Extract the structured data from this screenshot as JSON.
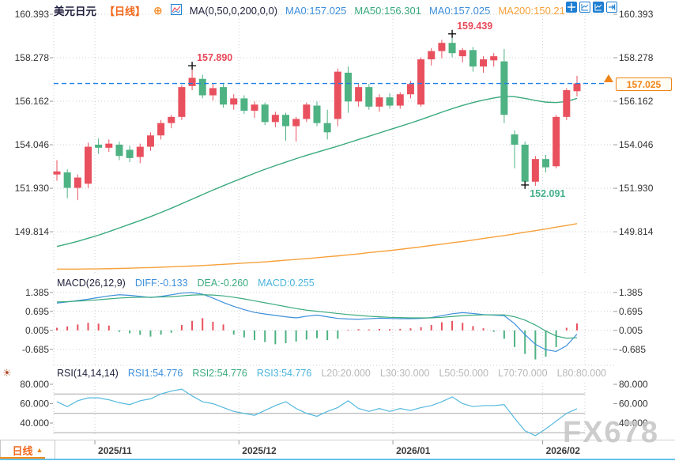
{
  "colors": {
    "bull": "#e9505e",
    "bear": "#4eb283",
    "ma50": "#3aaa7e",
    "ma200": "#f6a13a",
    "blue": "#3d8fdb",
    "cyan": "#4ab4dc",
    "teal": "#3aaa7e",
    "gray": "#b8b8b8",
    "orange": "#f2691d",
    "price": "#f08418",
    "grid": "#cfcfcf",
    "axis": "#333333",
    "dashed": "#1f7fe8",
    "rsi_line": "#54b9dd",
    "dark": "#23233f",
    "icon": "#1e7fd2",
    "timeline": "#3a3a3a",
    "ann_high": "#e8495a",
    "ann_low": "#45b08c",
    "level": "#a8a8a8"
  },
  "header": {
    "symbol": "美元日元",
    "period": "【日线】",
    "ma_settings": "MA(0,50,0,200,0,0)",
    "ma_values": [
      {
        "text": "MA0:157.025"
      },
      {
        "text": "MA50:156.301"
      },
      {
        "text": "MA0:157.025"
      },
      {
        "text": "MA200:150.21"
      }
    ]
  },
  "toolbar": {
    "icons": [
      "crosshair-icon",
      "chart-axes-icon",
      "chart-panel-icon",
      "page-forward-icon"
    ]
  },
  "current_price": {
    "value": "157.025"
  },
  "macd": {
    "label": "MACD(26,12,9)",
    "diff": "DIFF:-0.133",
    "dea": "DEA:-0.260",
    "macd": "MACD:0.255"
  },
  "rsi": {
    "label": "RSI(14,14,14)",
    "rsi1": "RSI1:54.776",
    "rsi2": "RSI2:54.776",
    "rsi3": "RSI3:54.776",
    "levels": [
      "L20:20.000",
      "L30:30.000",
      "L50:50.000",
      "L70:70.000",
      "L80:80.000"
    ]
  },
  "timeline": {
    "tab": "日线",
    "arrow": "▲"
  },
  "watermark": "FX678",
  "chart_data": [
    {
      "type": "candlestick",
      "title": "USD/JPY daily candlestick with MA50/MA200",
      "y_ticks": [
        {
          "t": "160.393",
          "v": 160.393
        },
        {
          "t": "158.278",
          "v": 158.278
        },
        {
          "t": "156.162",
          "v": 156.162
        },
        {
          "t": "154.046",
          "v": 154.046
        },
        {
          "t": "151.930",
          "v": 151.93
        },
        {
          "t": "149.814",
          "v": 149.814
        }
      ],
      "last_price": 157.025,
      "x_ticks": [
        {
          "label": "2025/11",
          "index": 3.65
        },
        {
          "label": "2025/12",
          "index": 17.5
        },
        {
          "label": "2026/01",
          "index": 32.3
        },
        {
          "label": "2026/02",
          "index": 46.7
        }
      ],
      "annotations": [
        {
          "index": 13,
          "side": "high",
          "label": "157.890"
        },
        {
          "index": 38,
          "side": "high",
          "label": "159.439"
        },
        {
          "index": 45,
          "side": "low",
          "label": "152.091"
        }
      ],
      "candles": [
        [
          152.6,
          153.3,
          152.3,
          152.75
        ],
        [
          152.7,
          152.85,
          151.45,
          151.95
        ],
        [
          151.95,
          152.6,
          151.35,
          152.45
        ],
        [
          152.15,
          154.15,
          151.95,
          153.95
        ],
        [
          154.05,
          154.35,
          153.6,
          153.9
        ],
        [
          153.9,
          154.3,
          153.7,
          154.1
        ],
        [
          154.05,
          154.2,
          153.3,
          153.5
        ],
        [
          153.8,
          154.0,
          153.2,
          153.4
        ],
        [
          153.45,
          154.1,
          153.15,
          153.95
        ],
        [
          153.95,
          154.65,
          153.75,
          154.5
        ],
        [
          154.5,
          155.25,
          154.3,
          155.1
        ],
        [
          155.1,
          155.5,
          154.85,
          155.4
        ],
        [
          155.4,
          156.95,
          155.25,
          156.85
        ],
        [
          156.9,
          157.89,
          156.7,
          157.3
        ],
        [
          157.25,
          157.45,
          156.3,
          156.45
        ],
        [
          156.45,
          157.0,
          156.2,
          156.8
        ],
        [
          156.85,
          157.0,
          155.85,
          156.0
        ],
        [
          156.0,
          156.5,
          155.75,
          156.3
        ],
        [
          156.3,
          156.45,
          155.55,
          155.7
        ],
        [
          155.7,
          156.15,
          155.35,
          156.0
        ],
        [
          156.0,
          156.1,
          155.0,
          155.15
        ],
        [
          155.15,
          155.65,
          154.9,
          155.5
        ],
        [
          155.5,
          155.6,
          154.25,
          154.95
        ],
        [
          154.95,
          155.4,
          154.2,
          155.3
        ],
        [
          155.3,
          156.1,
          155.15,
          156.0
        ],
        [
          155.95,
          156.15,
          154.95,
          155.1
        ],
        [
          155.1,
          155.75,
          154.3,
          154.65
        ],
        [
          155.3,
          157.75,
          154.95,
          157.6
        ],
        [
          157.55,
          157.85,
          155.6,
          156.15
        ],
        [
          156.15,
          157.0,
          155.9,
          156.85
        ],
        [
          156.85,
          157.0,
          155.75,
          155.9
        ],
        [
          155.9,
          156.5,
          155.65,
          156.35
        ],
        [
          156.35,
          156.55,
          155.8,
          155.95
        ],
        [
          155.95,
          156.6,
          155.8,
          156.5
        ],
        [
          156.5,
          157.15,
          156.3,
          157.0
        ],
        [
          156.0,
          158.3,
          155.9,
          158.2
        ],
        [
          158.2,
          158.75,
          157.9,
          158.6
        ],
        [
          158.6,
          159.15,
          158.25,
          159.0
        ],
        [
          159.0,
          159.439,
          158.3,
          158.5
        ],
        [
          158.35,
          158.75,
          158.05,
          158.65
        ],
        [
          158.65,
          158.8,
          157.6,
          157.85
        ],
        [
          157.85,
          158.35,
          157.55,
          158.2
        ],
        [
          158.15,
          158.5,
          157.85,
          158.35
        ],
        [
          158.1,
          158.7,
          155.1,
          155.5
        ],
        [
          154.55,
          154.75,
          152.9,
          154.05
        ],
        [
          154.05,
          154.2,
          152.091,
          152.25
        ],
        [
          152.25,
          153.5,
          152.05,
          153.35
        ],
        [
          153.35,
          153.55,
          152.7,
          152.95
        ],
        [
          153.0,
          155.5,
          152.9,
          155.4
        ],
        [
          155.4,
          156.8,
          155.25,
          156.7
        ],
        [
          156.65,
          157.4,
          156.4,
          157.025
        ]
      ],
      "ma50": [
        149.1,
        149.22,
        149.35,
        149.5,
        149.65,
        149.82,
        150.0,
        150.18,
        150.36,
        150.55,
        150.75,
        150.96,
        151.18,
        151.4,
        151.62,
        151.84,
        152.05,
        152.26,
        152.46,
        152.66,
        152.85,
        153.03,
        153.2,
        153.37,
        153.53,
        153.68,
        153.83,
        153.98,
        154.14,
        154.3,
        154.46,
        154.62,
        154.78,
        154.94,
        155.1,
        155.27,
        155.45,
        155.63,
        155.8,
        155.96,
        156.1,
        156.22,
        156.32,
        156.4,
        156.38,
        156.3,
        156.2,
        156.12,
        156.1,
        156.15,
        156.3
      ],
      "ma200": [
        148.0,
        148.0,
        148.0,
        148.01,
        148.01,
        148.02,
        148.03,
        148.04,
        148.06,
        148.07,
        148.09,
        148.11,
        148.13,
        148.15,
        148.17,
        148.2,
        148.23,
        148.26,
        148.29,
        148.32,
        148.35,
        148.39,
        148.43,
        148.47,
        148.51,
        148.55,
        148.6,
        148.64,
        148.69,
        148.74,
        148.8,
        148.85,
        148.9,
        148.96,
        149.02,
        149.08,
        149.15,
        149.21,
        149.28,
        149.34,
        149.41,
        149.49,
        149.56,
        149.63,
        149.71,
        149.79,
        149.87,
        149.95,
        150.04,
        150.12,
        150.21
      ]
    },
    {
      "type": "macd",
      "y_ticks": [
        {
          "t": "1.385",
          "v": 1.385
        },
        {
          "t": "0.695",
          "v": 0.695
        },
        {
          "t": "0.005",
          "v": 0.005
        },
        {
          "t": "-0.685",
          "v": -0.685
        }
      ],
      "diff": [
        1.0,
        1.04,
        1.09,
        1.14,
        1.2,
        1.26,
        1.3,
        1.28,
        1.24,
        1.2,
        1.24,
        1.3,
        1.36,
        1.38,
        1.32,
        1.18,
        1.02,
        0.88,
        0.76,
        0.66,
        0.6,
        0.55,
        0.5,
        0.46,
        0.52,
        0.56,
        0.5,
        0.44,
        0.42,
        0.41,
        0.43,
        0.45,
        0.44,
        0.43,
        0.43,
        0.44,
        0.47,
        0.54,
        0.61,
        0.65,
        0.62,
        0.58,
        0.56,
        0.54,
        0.25,
        -0.15,
        -0.5,
        -0.7,
        -0.76,
        -0.55,
        -0.133
      ],
      "dea": [
        1.04,
        1.05,
        1.07,
        1.09,
        1.12,
        1.15,
        1.18,
        1.2,
        1.21,
        1.21,
        1.22,
        1.23,
        1.26,
        1.29,
        1.3,
        1.29,
        1.26,
        1.21,
        1.15,
        1.08,
        1.01,
        0.94,
        0.87,
        0.8,
        0.74,
        0.7,
        0.66,
        0.62,
        0.58,
        0.55,
        0.52,
        0.5,
        0.48,
        0.47,
        0.46,
        0.46,
        0.46,
        0.48,
        0.51,
        0.54,
        0.56,
        0.57,
        0.57,
        0.57,
        0.5,
        0.38,
        0.2,
        -0.02,
        -0.2,
        -0.28,
        -0.26
      ],
      "hist": [
        0.1,
        0.15,
        0.22,
        0.28,
        0.25,
        0.18,
        -0.05,
        -0.1,
        -0.16,
        -0.22,
        -0.15,
        -0.08,
        0.2,
        0.35,
        0.45,
        0.32,
        0.22,
        -0.15,
        -0.25,
        -0.35,
        -0.42,
        -0.5,
        -0.46,
        -0.4,
        -0.33,
        -0.28,
        -0.35,
        -0.3,
        0.03,
        0.05,
        0.04,
        0.06,
        0.05,
        0.06,
        0.08,
        0.12,
        0.2,
        0.3,
        0.35,
        0.28,
        0.16,
        0.08,
        -0.05,
        -0.3,
        -0.6,
        -0.85,
        -1.05,
        -0.95,
        -0.6,
        0.1,
        0.255
      ]
    },
    {
      "type": "line",
      "y_ticks": [
        {
          "t": "80.000",
          "v": 80
        },
        {
          "t": "60.000",
          "v": 60
        },
        {
          "t": "40.000",
          "v": 40
        }
      ],
      "levels": [
        70,
        50,
        30
      ],
      "values": [
        62,
        57,
        63,
        66,
        66,
        64,
        61,
        59,
        63,
        65,
        70,
        73,
        75,
        68,
        62,
        60,
        56,
        52,
        50,
        48,
        53,
        58,
        62,
        55,
        50,
        47,
        52,
        56,
        63,
        55,
        52,
        55,
        52,
        55,
        53,
        56,
        58,
        62,
        67,
        60,
        57,
        58,
        58,
        59,
        45,
        32,
        27,
        34,
        42,
        50,
        54.776
      ]
    }
  ]
}
